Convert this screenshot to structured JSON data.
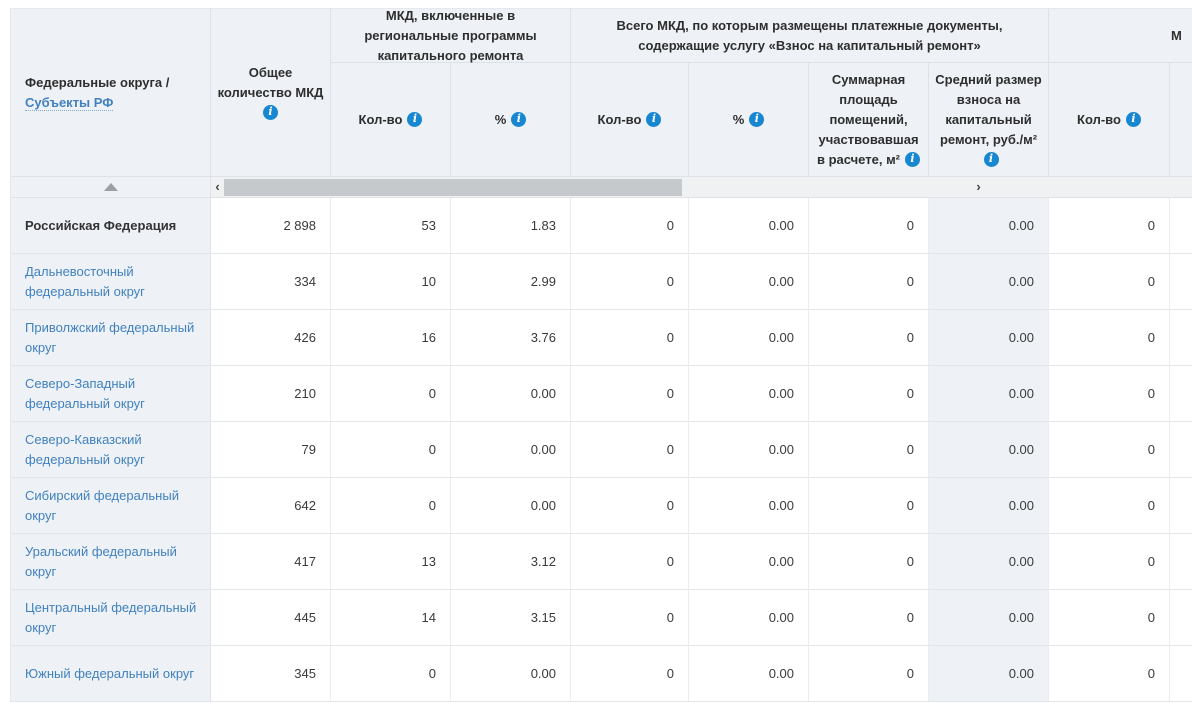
{
  "table": {
    "header": {
      "corner": {
        "title": "Федеральные округа /",
        "link": "Субъекты РФ"
      },
      "total_column": {
        "title": "Общее количество МКД"
      },
      "groups": [
        {
          "label": "МКД, включенные в региональные программы капитального ремонта"
        },
        {
          "label": "Всего МКД, по которым размещены платежные документы, содержащие услугу «Взнос на капитальный ремонт»"
        },
        {
          "label": "М"
        }
      ],
      "columns": [
        {
          "label": "Кол-во"
        },
        {
          "label": "%"
        },
        {
          "label": "Кол-во"
        },
        {
          "label": "%"
        },
        {
          "label": "Суммарная площадь помещений, участвовавшая в расчете, м²"
        },
        {
          "label": "Средний размер взноса на капитальный ремонт, руб./м²"
        },
        {
          "label": "Кол-во"
        }
      ]
    },
    "rows": [
      {
        "name": "Российская Федерация",
        "bold": true,
        "values": [
          "2 898",
          "53",
          "1.83",
          "0",
          "0.00",
          "0",
          "0.00",
          "0"
        ]
      },
      {
        "name": "Дальневосточный федеральный округ",
        "values": [
          "334",
          "10",
          "2.99",
          "0",
          "0.00",
          "0",
          "0.00",
          "0"
        ]
      },
      {
        "name": "Приволжский федеральный округ",
        "values": [
          "426",
          "16",
          "3.76",
          "0",
          "0.00",
          "0",
          "0.00",
          "0"
        ]
      },
      {
        "name": "Северо-Западный федеральный округ",
        "values": [
          "210",
          "0",
          "0.00",
          "0",
          "0.00",
          "0",
          "0.00",
          "0"
        ]
      },
      {
        "name": "Северо-Кавказский федеральный округ",
        "values": [
          "79",
          "0",
          "0.00",
          "0",
          "0.00",
          "0",
          "0.00",
          "0"
        ]
      },
      {
        "name": "Сибирский федеральный округ",
        "values": [
          "642",
          "0",
          "0.00",
          "0",
          "0.00",
          "0",
          "0.00",
          "0"
        ]
      },
      {
        "name": "Уральский федеральный округ",
        "values": [
          "417",
          "13",
          "3.12",
          "0",
          "0.00",
          "0",
          "0.00",
          "0"
        ]
      },
      {
        "name": "Центральный федеральный округ",
        "values": [
          "445",
          "14",
          "3.15",
          "0",
          "0.00",
          "0",
          "0.00",
          "0"
        ]
      },
      {
        "name": "Южный федеральный округ",
        "values": [
          "345",
          "0",
          "0.00",
          "0",
          "0.00",
          "0",
          "0.00",
          "0"
        ]
      }
    ],
    "colors": {
      "header_bg": "#eef2f6",
      "link_blue": "#4181c0",
      "info_icon_blue": "#1787d2",
      "scroll_thumb": "#c6c9cc"
    }
  }
}
